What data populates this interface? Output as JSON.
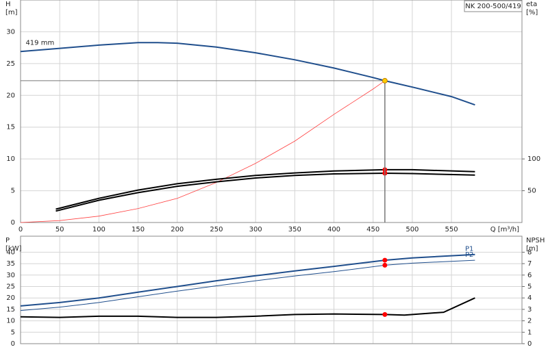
{
  "chart_data": [
    {
      "type": "line",
      "title": "NK 200-500/419",
      "y_label": "H",
      "y_unit": "[m]",
      "y2_label": "eta",
      "y2_unit": "[%]",
      "x_label": "Q [m³/h]",
      "xlim": [
        0,
        640
      ],
      "xticks": [
        0,
        50,
        100,
        150,
        200,
        250,
        300,
        350,
        400,
        450,
        500,
        550
      ],
      "xtick_labels": true,
      "ylim": [
        0,
        35
      ],
      "yticks": [
        0,
        5,
        10,
        15,
        20,
        25,
        30
      ],
      "y2lim": [
        0,
        350
      ],
      "y2ticks": [
        50,
        100
      ],
      "grid": true,
      "series": [
        {
          "name": "419 mm",
          "color": "#1f4e8c",
          "width": 2,
          "x": [
            0,
            50,
            100,
            150,
            175,
            200,
            250,
            300,
            350,
            400,
            450,
            465,
            500,
            550,
            580
          ],
          "values": [
            26.9,
            27.4,
            27.9,
            28.3,
            28.3,
            28.2,
            27.6,
            26.7,
            25.6,
            24.3,
            22.8,
            22.3,
            21.3,
            19.8,
            18.5
          ]
        },
        {
          "color": "#ff4040",
          "width": 0.8,
          "x": [
            0,
            50,
            100,
            150,
            200,
            250,
            300,
            350,
            400,
            450,
            465
          ],
          "values": [
            0,
            0.3,
            1,
            2.2,
            3.8,
            6.3,
            9.3,
            12.8,
            17.0,
            21.0,
            22.3
          ]
        },
        {
          "color": "#000000",
          "width": 2,
          "axis": "y2",
          "x": [
            45,
            100,
            150,
            200,
            250,
            300,
            350,
            400,
            465,
            500,
            580
          ],
          "values": [
            21,
            38,
            51,
            61,
            68,
            74,
            78,
            81,
            83,
            83,
            80
          ],
          "marker_at": 465,
          "marker_color": "#ff0000"
        },
        {
          "color": "#000000",
          "width": 2,
          "axis": "y2",
          "x": [
            45,
            100,
            150,
            200,
            250,
            300,
            350,
            400,
            465,
            500,
            580
          ],
          "values": [
            18,
            35,
            47,
            57,
            64,
            70,
            74,
            76.5,
            77.5,
            77,
            74.5
          ],
          "marker_at": 465,
          "marker_color": "#ff0000"
        },
        {
          "color": "#ffcc00",
          "x": [
            465
          ],
          "values": [
            22.3
          ],
          "marker_at": 465,
          "marker_color": "#ffcc00",
          "crosshair": true
        }
      ]
    },
    {
      "type": "line",
      "y_label": "P",
      "y_unit": "[kW]",
      "y2_label": "NPSH",
      "y2_unit": "[m]",
      "xlim": [
        0,
        640
      ],
      "xticks": [
        0,
        50,
        100,
        150,
        200,
        250,
        300,
        350,
        400,
        450,
        500,
        550
      ],
      "xtick_labels": false,
      "ylim": [
        0,
        47
      ],
      "yticks": [
        0,
        5,
        10,
        15,
        20,
        25,
        30,
        35,
        40
      ],
      "y2lim": [
        0,
        9.4
      ],
      "y2ticks": [
        0,
        1,
        2,
        3,
        4,
        5,
        6,
        7,
        8
      ],
      "grid": true,
      "series": [
        {
          "name": "P1",
          "color": "#1f4e8c",
          "width": 2,
          "x": [
            0,
            50,
            100,
            150,
            200,
            250,
            300,
            350,
            400,
            465,
            500,
            580
          ],
          "values": [
            16.5,
            18,
            20,
            22.5,
            25,
            27.5,
            29.7,
            31.8,
            33.8,
            36.5,
            37.5,
            39
          ],
          "marker_at": 465,
          "marker_color": "#ff0000"
        },
        {
          "name": "P2",
          "color": "#1f4e8c",
          "width": 1,
          "x": [
            0,
            50,
            100,
            150,
            200,
            250,
            300,
            350,
            400,
            465,
            500,
            580
          ],
          "values": [
            14.5,
            16,
            18,
            20.5,
            23,
            25.3,
            27.5,
            29.6,
            31.5,
            34.3,
            35.2,
            36.5
          ],
          "marker_at": 465,
          "marker_color": "#ff0000"
        },
        {
          "color": "#000000",
          "width": 2,
          "axis": "y2",
          "x": [
            0,
            50,
            100,
            150,
            200,
            250,
            300,
            350,
            400,
            465,
            490,
            540,
            580
          ],
          "values": [
            2.35,
            2.3,
            2.4,
            2.4,
            2.3,
            2.3,
            2.4,
            2.55,
            2.6,
            2.55,
            2.5,
            2.75,
            4.0
          ],
          "marker_at": 465,
          "marker_color": "#ff0000"
        }
      ]
    }
  ]
}
